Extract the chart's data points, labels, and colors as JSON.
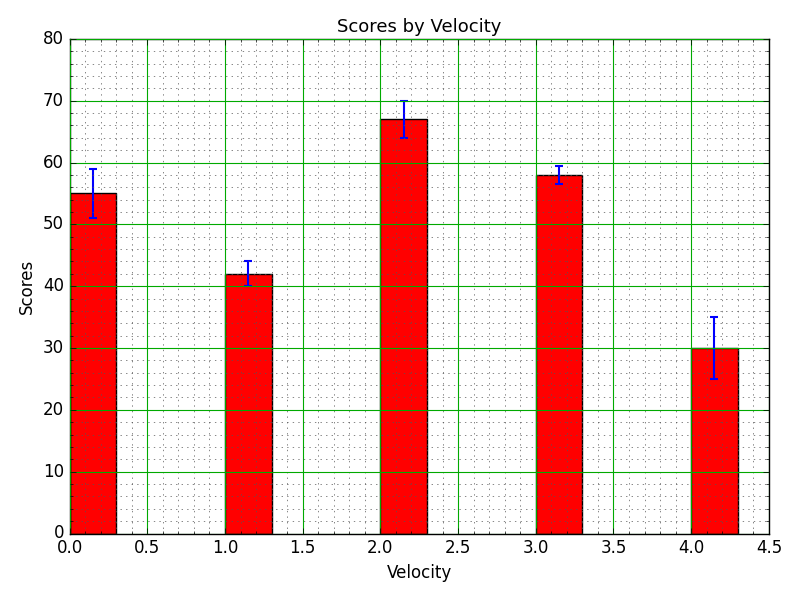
{
  "title": "Scores by Velocity",
  "xlabel": "Velocity",
  "ylabel": "Scores",
  "x_positions": [
    0.15,
    1.15,
    2.15,
    3.15,
    4.15
  ],
  "bar_heights": [
    55,
    42,
    67,
    58,
    30
  ],
  "bar_errors": [
    4,
    2,
    3,
    1.5,
    5
  ],
  "bar_width": 0.3,
  "bar_color": "red",
  "error_color": "blue",
  "xlim": [
    0.0,
    4.5
  ],
  "ylim": [
    0,
    80
  ],
  "xticks": [
    0.0,
    0.5,
    1.0,
    1.5,
    2.0,
    2.5,
    3.0,
    3.5,
    4.0,
    4.5
  ],
  "yticks": [
    0,
    10,
    20,
    30,
    40,
    50,
    60,
    70,
    80
  ],
  "major_grid_color": "#00aa00",
  "minor_grid_color": "#aaaaaa",
  "background_color": "#ffffff",
  "figsize": [
    8.0,
    6.0
  ],
  "dpi": 100,
  "title_fontsize": 13,
  "label_fontsize": 12
}
